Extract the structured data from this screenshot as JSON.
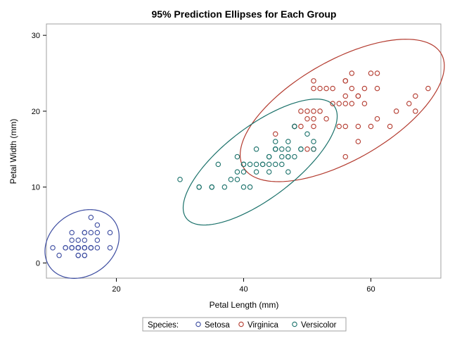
{
  "chart_data": {
    "type": "scatter",
    "title": "95% Prediction Ellipses for Each Group",
    "xlabel": "Petal Length (mm)",
    "ylabel": "Petal Width (mm)",
    "xlim": [
      9,
      71
    ],
    "ylim": [
      -2,
      31.5
    ],
    "x_ticks": [
      20,
      40,
      60
    ],
    "y_ticks": [
      0,
      10,
      20,
      30
    ],
    "grid": false,
    "legend": {
      "title": "Species:",
      "placement": "bottom"
    },
    "series": [
      {
        "name": "Setosa",
        "color": "#3b4ba0",
        "points": [
          [
            10,
            2
          ],
          [
            11,
            1
          ],
          [
            12,
            2
          ],
          [
            12,
            2
          ],
          [
            13,
            2
          ],
          [
            13,
            3
          ],
          [
            13,
            4
          ],
          [
            13,
            2
          ],
          [
            13,
            2
          ],
          [
            14,
            1
          ],
          [
            14,
            2
          ],
          [
            14,
            3
          ],
          [
            14,
            2
          ],
          [
            14,
            2
          ],
          [
            14,
            2
          ],
          [
            14,
            2
          ],
          [
            14,
            1
          ],
          [
            15,
            2
          ],
          [
            15,
            3
          ],
          [
            15,
            4
          ],
          [
            15,
            1
          ],
          [
            15,
            2
          ],
          [
            15,
            2
          ],
          [
            15,
            2
          ],
          [
            15,
            4
          ],
          [
            15,
            1
          ],
          [
            16,
            2
          ],
          [
            16,
            4
          ],
          [
            16,
            2
          ],
          [
            16,
            6
          ],
          [
            16,
            2
          ],
          [
            17,
            3
          ],
          [
            17,
            5
          ],
          [
            17,
            4
          ],
          [
            17,
            2
          ],
          [
            19,
            2
          ],
          [
            19,
            4
          ]
        ],
        "ellipse": {
          "center": [
            14.6,
            2.5
          ],
          "semi_axes": [
            6.0,
            4.3
          ],
          "angle_deg": 20
        }
      },
      {
        "name": "Virginica",
        "color": "#b33a2e",
        "points": [
          [
            45,
            17
          ],
          [
            48,
            18
          ],
          [
            48,
            18
          ],
          [
            49,
            18
          ],
          [
            49,
            20
          ],
          [
            50,
            15
          ],
          [
            50,
            19
          ],
          [
            50,
            20
          ],
          [
            51,
            23
          ],
          [
            51,
            18
          ],
          [
            51,
            19
          ],
          [
            51,
            20
          ],
          [
            51,
            24
          ],
          [
            51,
            15
          ],
          [
            52,
            20
          ],
          [
            52,
            23
          ],
          [
            53,
            19
          ],
          [
            53,
            23
          ],
          [
            54,
            21
          ],
          [
            54,
            23
          ],
          [
            55,
            18
          ],
          [
            55,
            21
          ],
          [
            56,
            14
          ],
          [
            56,
            18
          ],
          [
            56,
            21
          ],
          [
            56,
            22
          ],
          [
            56,
            24
          ],
          [
            56,
            24
          ],
          [
            57,
            21
          ],
          [
            57,
            23
          ],
          [
            57,
            25
          ],
          [
            58,
            16
          ],
          [
            58,
            18
          ],
          [
            58,
            22
          ],
          [
            58,
            22
          ],
          [
            59,
            21
          ],
          [
            59,
            23
          ],
          [
            60,
            18
          ],
          [
            60,
            25
          ],
          [
            61,
            19
          ],
          [
            61,
            23
          ],
          [
            61,
            25
          ],
          [
            63,
            18
          ],
          [
            64,
            20
          ],
          [
            66,
            21
          ],
          [
            67,
            20
          ],
          [
            67,
            22
          ],
          [
            69,
            23
          ]
        ],
        "ellipse": {
          "center": [
            55.5,
            20.1
          ],
          "semi_axes": [
            17.3,
            6.8
          ],
          "angle_deg": 24
        }
      },
      {
        "name": "Versicolor",
        "color": "#1a716a",
        "points": [
          [
            30,
            11
          ],
          [
            33,
            10
          ],
          [
            33,
            10
          ],
          [
            35,
            10
          ],
          [
            35,
            10
          ],
          [
            36,
            13
          ],
          [
            37,
            10
          ],
          [
            38,
            11
          ],
          [
            39,
            11
          ],
          [
            39,
            12
          ],
          [
            39,
            14
          ],
          [
            40,
            13
          ],
          [
            40,
            10
          ],
          [
            40,
            12
          ],
          [
            40,
            13
          ],
          [
            41,
            10
          ],
          [
            41,
            13
          ],
          [
            42,
            13
          ],
          [
            42,
            12
          ],
          [
            42,
            15
          ],
          [
            43,
            13
          ],
          [
            43,
            13
          ],
          [
            44,
            14
          ],
          [
            44,
            12
          ],
          [
            44,
            13
          ],
          [
            44,
            14
          ],
          [
            45,
            13
          ],
          [
            45,
            15
          ],
          [
            45,
            15
          ],
          [
            45,
            16
          ],
          [
            45,
            15
          ],
          [
            46,
            13
          ],
          [
            46,
            14
          ],
          [
            46,
            15
          ],
          [
            47,
            12
          ],
          [
            47,
            14
          ],
          [
            47,
            14
          ],
          [
            47,
            15
          ],
          [
            47,
            16
          ],
          [
            48,
            14
          ],
          [
            48,
            18
          ],
          [
            48,
            18
          ],
          [
            49,
            15
          ],
          [
            49,
            15
          ],
          [
            50,
            17
          ],
          [
            51,
            15
          ],
          [
            51,
            16
          ]
        ],
        "ellipse": {
          "center": [
            42.6,
            13.3
          ],
          "semi_axes": [
            13.8,
            5.0
          ],
          "angle_deg": 31
        }
      }
    ]
  }
}
